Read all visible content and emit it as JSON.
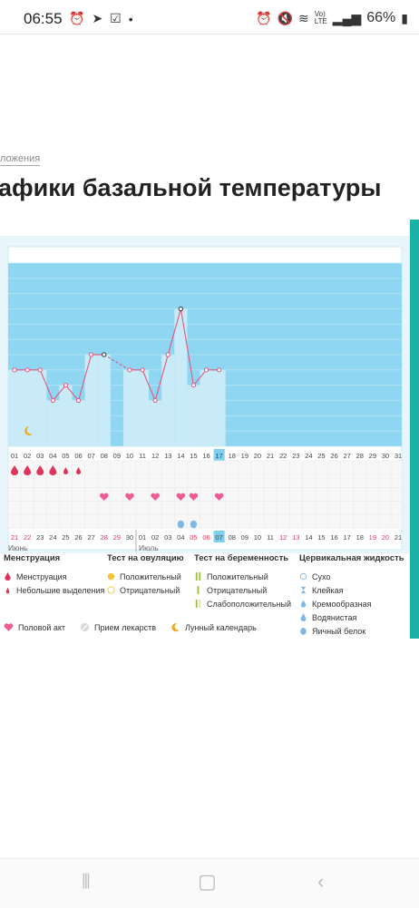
{
  "statusbar": {
    "time": "06:55",
    "left_icons": [
      "alarm-icon",
      "telegram-icon",
      "checkbox-icon",
      "dot-icon"
    ],
    "right_icons": [
      "alarm-icon",
      "mute-icon",
      "wifi-icon",
      "volte-icon",
      "signal-icon"
    ],
    "battery": "66%"
  },
  "breadcrumb": "ложения",
  "title": "афики базальной температуры",
  "chart_data": {
    "type": "line",
    "x_top": [
      "01",
      "02",
      "03",
      "04",
      "05",
      "06",
      "07",
      "08",
      "09",
      "10",
      "11",
      "12",
      "13",
      "14",
      "15",
      "16",
      "17",
      "18",
      "19",
      "20",
      "21",
      "22",
      "23",
      "24",
      "25",
      "26",
      "27",
      "28",
      "29",
      "30",
      "31"
    ],
    "temperature_points": [
      {
        "x": "01",
        "y": 0.5
      },
      {
        "x": "02",
        "y": 0.5
      },
      {
        "x": "03",
        "y": 0.5
      },
      {
        "x": "04",
        "y": 0.3
      },
      {
        "x": "05",
        "y": 0.4
      },
      {
        "x": "06",
        "y": 0.3
      },
      {
        "x": "07",
        "y": 0.6
      },
      {
        "x": "08",
        "y": 0.6
      },
      {
        "x": "10",
        "y": 0.5
      },
      {
        "x": "11",
        "y": 0.5
      },
      {
        "x": "12",
        "y": 0.3
      },
      {
        "x": "13",
        "y": 0.6
      },
      {
        "x": "14",
        "y": 0.9
      },
      {
        "x": "15",
        "y": 0.4
      },
      {
        "x": "16",
        "y": 0.5
      },
      {
        "x": "17",
        "y": 0.5
      }
    ],
    "highlight_day": "17",
    "menstruation_days": [
      "01",
      "02",
      "03",
      "04"
    ],
    "light_discharge_days": [
      "05",
      "06"
    ],
    "intercourse_days": [
      "08",
      "10",
      "12",
      "14",
      "15",
      "17"
    ],
    "egg_white_days": [
      "14",
      "15"
    ],
    "lunar_day": "02",
    "x_bottom": [
      "21",
      "22",
      "23",
      "24",
      "25",
      "26",
      "27",
      "28",
      "29",
      "30",
      "01",
      "02",
      "03",
      "04",
      "05",
      "06",
      "07",
      "08",
      "09",
      "10",
      "11",
      "12",
      "13",
      "14",
      "15",
      "16",
      "17",
      "18",
      "19",
      "20",
      "21"
    ],
    "x_bottom_red": [
      "21",
      "22",
      "28",
      "29",
      "05",
      "06",
      "12",
      "13",
      "19",
      "20"
    ],
    "month_left": "Июнь",
    "month_right": "Июль",
    "bar_color": "#c9ebf7",
    "bg_color": "#8fd6f2",
    "line_color": "#e2557e"
  },
  "legend": {
    "menstruation": {
      "title": "Менструация",
      "items": [
        "Менструация",
        "Небольшие выделения"
      ]
    },
    "ovulation": {
      "title": "Тест на овуляцию",
      "items": [
        "Положительный",
        "Отрицательный"
      ]
    },
    "pregnancy": {
      "title": "Тест на беременность",
      "items": [
        "Положительный",
        "Отрицательный",
        "Слабоположительный"
      ]
    },
    "cervical": {
      "title": "Цервикальная жидкость",
      "items": [
        "Сухо",
        "Клейкая",
        "Кремообразная",
        "Водянистая",
        "Яичный белок"
      ]
    },
    "bottom": [
      "Половой акт",
      "Прием лекарств",
      "Лунный календарь"
    ]
  },
  "colors": {
    "drop": "#e0335a",
    "heart": "#ef5c94",
    "egg": "#7fb8e6",
    "yellow": "#f4c531",
    "green": "#9bc13c",
    "accent": "#1bb3a6"
  }
}
